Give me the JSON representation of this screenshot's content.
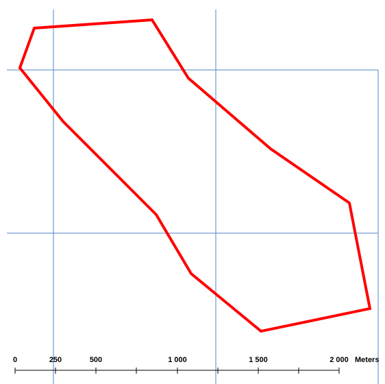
{
  "map": {
    "colors": {
      "grid": "#4f86c6",
      "boundary": "#ff0000",
      "scale": "#000000",
      "background": "#ffffff"
    },
    "scale_bar": {
      "labels": [
        "0",
        "250",
        "500",
        "1 000",
        "1 500",
        "2 000"
      ],
      "unit": "Meters"
    }
  }
}
